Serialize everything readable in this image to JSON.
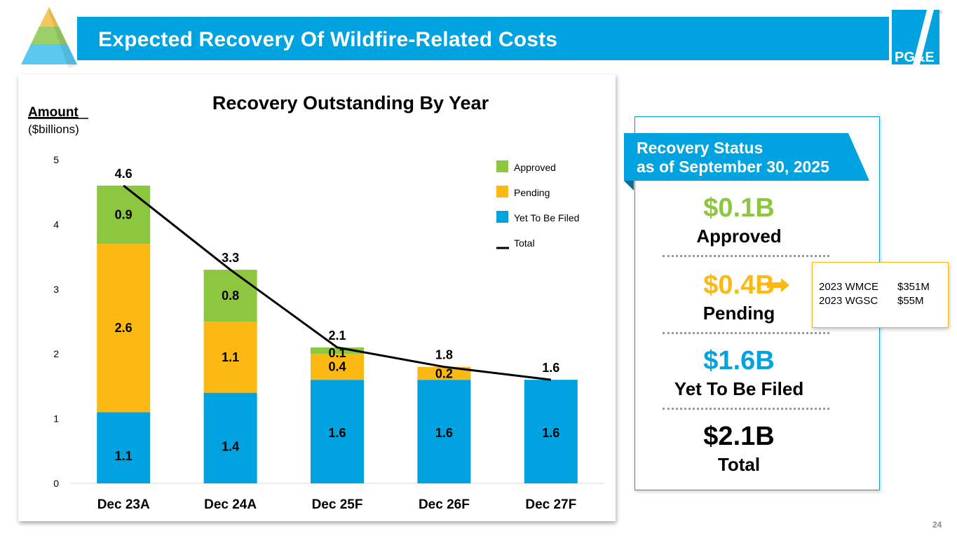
{
  "header": {
    "title": "Expected Recovery Of Wildfire-Related Costs",
    "logo_text": "PG&E",
    "accent": "#00a3e0"
  },
  "chart_data": {
    "type": "bar",
    "stacked": true,
    "title": "Recovery Outstanding By Year",
    "ylabel": "Amount",
    "ylabel_unit": "($billions)",
    "xlabel": "",
    "ylim": [
      0,
      5
    ],
    "yticks": [
      "0",
      "1",
      "2",
      "3",
      "4",
      "5"
    ],
    "categories": [
      "Dec 23A",
      "Dec 24A",
      "Dec 25F",
      "Dec 26F",
      "Dec 27F"
    ],
    "series": [
      {
        "name": "Yet To Be Filed",
        "color": "#00a3e0",
        "values": [
          1.1,
          1.4,
          1.6,
          1.6,
          1.6
        ],
        "labels": [
          "1.1",
          "1.4",
          "1.6",
          "1.6",
          "1.6"
        ]
      },
      {
        "name": "Pending",
        "color": "#fdb913",
        "values": [
          2.6,
          1.1,
          0.4,
          0.2,
          0
        ],
        "labels": [
          "2.6",
          "1.1",
          "0.4",
          "0.2",
          ""
        ]
      },
      {
        "name": "Approved",
        "color": "#8dc63f",
        "values": [
          0.9,
          0.8,
          0.1,
          0,
          0
        ],
        "labels": [
          "0.9",
          "0.8",
          "0.1",
          "",
          ""
        ]
      }
    ],
    "line": {
      "name": "Total",
      "color": "#000000",
      "values": [
        4.6,
        3.3,
        2.1,
        1.8,
        1.6
      ],
      "labels": [
        "4.6",
        "3.3",
        "2.1",
        "1.8",
        "1.6"
      ]
    },
    "legend": [
      "Approved",
      "Pending",
      "Yet To Be Filed",
      "Total"
    ],
    "legend_placement": "top-right",
    "grid": false
  },
  "status": {
    "heading_line1": "Recovery Status",
    "heading_line2": "as of September 30, 2025",
    "approved_value": "$0.1B",
    "approved_label": "Approved",
    "pending_value": "$0.4B",
    "pending_label": "Pending",
    "filed_value": "$1.6B",
    "filed_label": "Yet To Be Filed",
    "total_value": "$2.1B",
    "total_label": "Total",
    "colors": {
      "approved": "#8dc63f",
      "pending": "#fdb913",
      "filed": "#00a3e0",
      "total": "#000000"
    }
  },
  "pending_note": {
    "rows": [
      {
        "item": "2023 WMCE",
        "amount": "$351M"
      },
      {
        "item": "2023 WGSC",
        "amount": "$55M"
      }
    ]
  },
  "page_number": "24"
}
